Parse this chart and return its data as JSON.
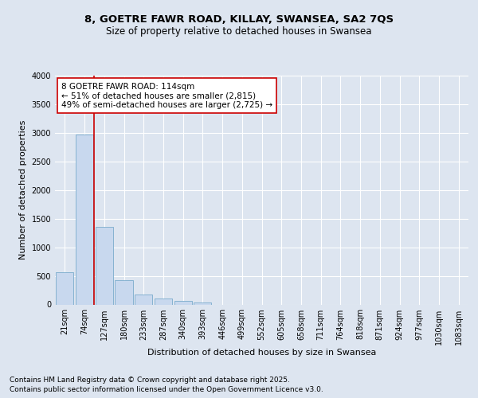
{
  "title_line1": "8, GOETRE FAWR ROAD, KILLAY, SWANSEA, SA2 7QS",
  "title_line2": "Size of property relative to detached houses in Swansea",
  "xlabel": "Distribution of detached houses by size in Swansea",
  "ylabel": "Number of detached properties",
  "categories": [
    "21sqm",
    "74sqm",
    "127sqm",
    "180sqm",
    "233sqm",
    "287sqm",
    "340sqm",
    "393sqm",
    "446sqm",
    "499sqm",
    "552sqm",
    "605sqm",
    "658sqm",
    "711sqm",
    "764sqm",
    "818sqm",
    "871sqm",
    "924sqm",
    "977sqm",
    "1030sqm",
    "1083sqm"
  ],
  "values": [
    560,
    2970,
    1360,
    420,
    175,
    100,
    60,
    40,
    0,
    0,
    0,
    0,
    0,
    0,
    0,
    0,
    0,
    0,
    0,
    0,
    0
  ],
  "bar_color": "#c8d8ee",
  "bar_edge_color": "#7aabcc",
  "vline_color": "#cc0000",
  "annotation_text": "8 GOETRE FAWR ROAD: 114sqm\n← 51% of detached houses are smaller (2,815)\n49% of semi-detached houses are larger (2,725) →",
  "annotation_box_facecolor": "#ffffff",
  "annotation_box_edgecolor": "#cc0000",
  "ylim": [
    0,
    4000
  ],
  "yticks": [
    0,
    500,
    1000,
    1500,
    2000,
    2500,
    3000,
    3500,
    4000
  ],
  "footer_line1": "Contains HM Land Registry data © Crown copyright and database right 2025.",
  "footer_line2": "Contains public sector information licensed under the Open Government Licence v3.0.",
  "bg_color": "#dde5f0",
  "plot_bg_color": "#dde5f0",
  "grid_color": "#ffffff",
  "title_fontsize": 9.5,
  "subtitle_fontsize": 8.5,
  "axis_label_fontsize": 8,
  "tick_fontsize": 7,
  "annotation_fontsize": 7.5,
  "footer_fontsize": 6.5
}
